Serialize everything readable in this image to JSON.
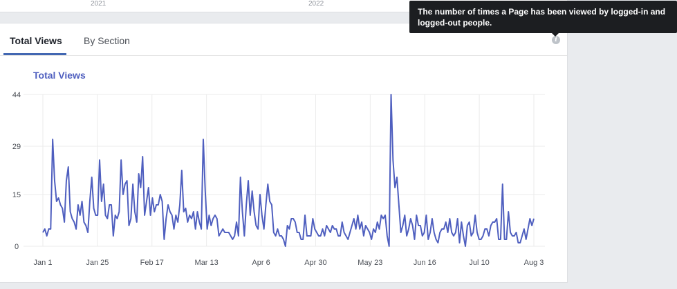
{
  "timeline": {
    "years": [
      "2021",
      "2022"
    ]
  },
  "tabs": [
    {
      "label": "Total Views",
      "active": true
    },
    {
      "label": "By Section",
      "active": false
    }
  ],
  "tooltip": {
    "text": "The number of times a Page has been viewed by logged-in and logged-out people."
  },
  "info_icon": "i",
  "colors": {
    "line": "#4f5fbf",
    "title": "#4f5fbf",
    "grid": "#ebebeb",
    "tab_underline": "#4267b2",
    "tooltip_bg": "#1c1e21"
  },
  "chart_data": {
    "type": "line",
    "title": "Total Views",
    "xlabel": "",
    "ylabel": "",
    "ylim": [
      0,
      44
    ],
    "y_ticks": [
      0,
      15,
      29,
      44
    ],
    "x_tick_labels": [
      "Jan 1",
      "Jan 25",
      "Feb 17",
      "Mar 13",
      "Apr 6",
      "Apr 30",
      "May 23",
      "Jun 16",
      "Jul 10",
      "Aug 3"
    ],
    "grid": true,
    "legend": "none",
    "series": [
      {
        "values": [
          4,
          5,
          3,
          5,
          5,
          31,
          19,
          13,
          14,
          12,
          11,
          7,
          19,
          23,
          10,
          8,
          7,
          5,
          12,
          9,
          13,
          7,
          6,
          4,
          13,
          20,
          11,
          9,
          9,
          25,
          13,
          18,
          9,
          8,
          12,
          12,
          3,
          9,
          8,
          10,
          25,
          15,
          18,
          19,
          6,
          8,
          18,
          10,
          7,
          21,
          17,
          26,
          9,
          13,
          17,
          9,
          14,
          10,
          12,
          12,
          15,
          13,
          2,
          8,
          12,
          10,
          9,
          5,
          9,
          7,
          12,
          22,
          10,
          11,
          7,
          9,
          8,
          10,
          5,
          10,
          7,
          5,
          31,
          16,
          5,
          9,
          6,
          8,
          9,
          8,
          3,
          4,
          5,
          4,
          4,
          4,
          3,
          2,
          3,
          7,
          3,
          20,
          10,
          3,
          12,
          19,
          9,
          16,
          10,
          6,
          5,
          15,
          9,
          5,
          12,
          18,
          13,
          12,
          4,
          3,
          5,
          3,
          3,
          2,
          0,
          6,
          5,
          8,
          8,
          7,
          4,
          4,
          2,
          2,
          9,
          3,
          3,
          3,
          8,
          5,
          4,
          3,
          3,
          5,
          3,
          6,
          5,
          4,
          6,
          5,
          5,
          3,
          3,
          7,
          4,
          3,
          2,
          4,
          6,
          8,
          5,
          9,
          5,
          7,
          3,
          6,
          5,
          4,
          2,
          5,
          4,
          7,
          5,
          9,
          8,
          9,
          3,
          0,
          44,
          25,
          17,
          20,
          12,
          4,
          6,
          9,
          3,
          5,
          8,
          6,
          2,
          9,
          6,
          6,
          3,
          4,
          9,
          2,
          4,
          8,
          4,
          2,
          1,
          4,
          5,
          5,
          7,
          4,
          8,
          4,
          3,
          4,
          8,
          1,
          7,
          3,
          0,
          6,
          7,
          3,
          4,
          9,
          4,
          2,
          2,
          3,
          5,
          5,
          3,
          6,
          7,
          7,
          8,
          2,
          2,
          18,
          2,
          2,
          10,
          4,
          3,
          3,
          4,
          1,
          1,
          3,
          5,
          2,
          5,
          8,
          6,
          8
        ]
      }
    ]
  }
}
